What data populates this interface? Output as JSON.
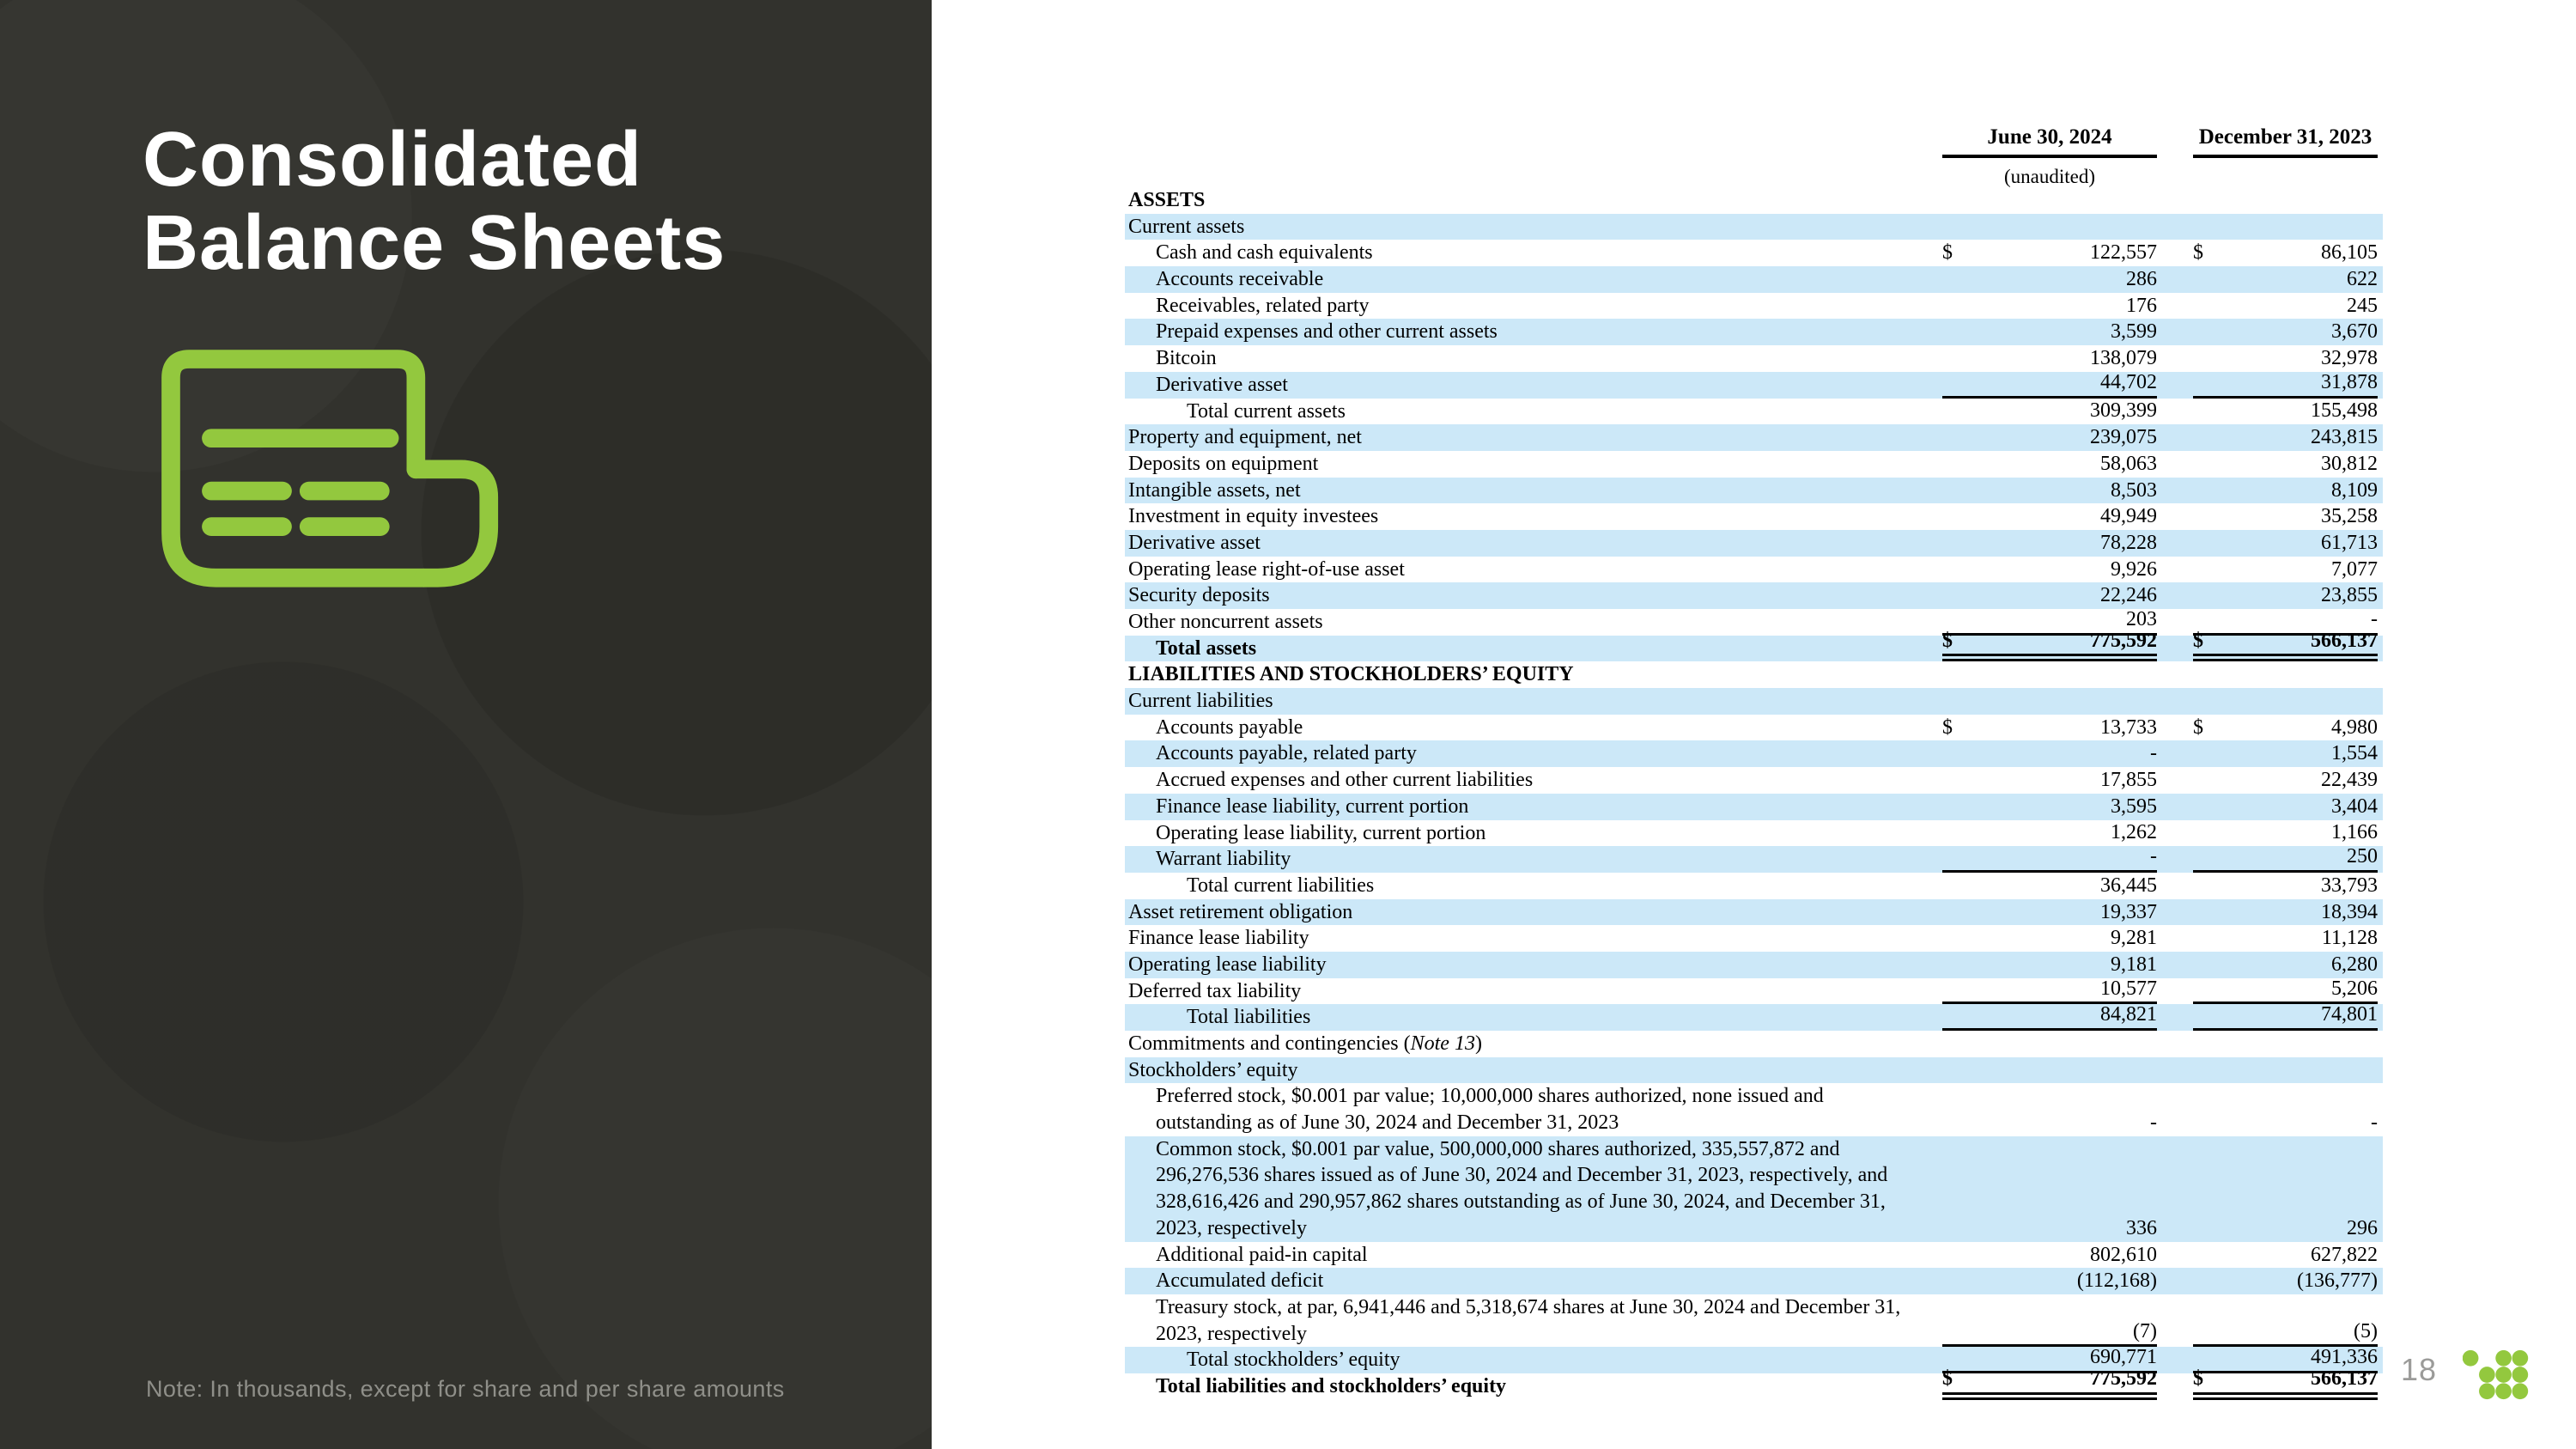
{
  "slide": {
    "title_lines": [
      "Consolidated",
      "Balance Sheets"
    ],
    "note": "Note: In thousands, except for share and per share amounts",
    "page_number": "18"
  },
  "colors": {
    "accent_green": "#93c83e",
    "panel_dark": "#32322d",
    "row_blue": "#cce8f8",
    "note_gray": "#8f8f89",
    "page_number_gray": "#9b9b99"
  },
  "icons": {
    "left_icon": "newspaper-icon",
    "footer_logo": "dots-grid-logo"
  },
  "table": {
    "col_headers": [
      {
        "label": "June 30, 2024",
        "sub": "(unaudited)"
      },
      {
        "label": "December 31, 2023",
        "sub": ""
      }
    ],
    "rows": [
      {
        "label": "ASSETS",
        "indent": 0,
        "bold": true,
        "shaded": false
      },
      {
        "label": "Current assets",
        "indent": 0,
        "shaded": true
      },
      {
        "label": "Cash and cash equivalents",
        "indent": 1,
        "shaded": false,
        "d1": "$",
        "v1": "122,557",
        "d2": "$",
        "v2": "86,105"
      },
      {
        "label": "Accounts receivable",
        "indent": 1,
        "shaded": true,
        "v1": "286",
        "v2": "622"
      },
      {
        "label": "Receivables, related party",
        "indent": 1,
        "shaded": false,
        "v1": "176",
        "v2": "245"
      },
      {
        "label": "Prepaid expenses and other current assets",
        "indent": 1,
        "shaded": true,
        "v1": "3,599",
        "v2": "3,670"
      },
      {
        "label": "Bitcoin",
        "indent": 1,
        "shaded": false,
        "v1": "138,079",
        "v2": "32,978"
      },
      {
        "label": "Derivative asset",
        "indent": 1,
        "shaded": true,
        "v1": "44,702",
        "v2": "31,878",
        "u": "s"
      },
      {
        "label": "Total current assets",
        "indent": 2,
        "shaded": false,
        "v1": "309,399",
        "v2": "155,498"
      },
      {
        "label": "Property and equipment, net",
        "indent": 0,
        "shaded": true,
        "v1": "239,075",
        "v2": "243,815"
      },
      {
        "label": "Deposits on equipment",
        "indent": 0,
        "shaded": false,
        "v1": "58,063",
        "v2": "30,812"
      },
      {
        "label": "Intangible assets, net",
        "indent": 0,
        "shaded": true,
        "v1": "8,503",
        "v2": "8,109"
      },
      {
        "label": "Investment in equity investees",
        "indent": 0,
        "shaded": false,
        "v1": "49,949",
        "v2": "35,258"
      },
      {
        "label": "Derivative asset",
        "indent": 0,
        "shaded": true,
        "v1": "78,228",
        "v2": "61,713"
      },
      {
        "label": "Operating lease right-of-use asset",
        "indent": 0,
        "shaded": false,
        "v1": "9,926",
        "v2": "7,077"
      },
      {
        "label": "Security deposits",
        "indent": 0,
        "shaded": true,
        "v1": "22,246",
        "v2": "23,855"
      },
      {
        "label": "Other noncurrent assets",
        "indent": 0,
        "shaded": false,
        "v1": "203",
        "v2": "-",
        "u": "s"
      },
      {
        "label": "Total assets",
        "indent": 1,
        "bold": true,
        "shaded": true,
        "d1": "$",
        "v1": "775,592",
        "d2": "$",
        "v2": "566,137",
        "u": "d"
      },
      {
        "label": "LIABILITIES AND STOCKHOLDERS’ EQUITY",
        "indent": 0,
        "bold": true,
        "shaded": false
      },
      {
        "label": "Current liabilities",
        "indent": 0,
        "shaded": true
      },
      {
        "label": "Accounts payable",
        "indent": 1,
        "shaded": false,
        "d1": "$",
        "v1": "13,733",
        "d2": "$",
        "v2": "4,980"
      },
      {
        "label": "Accounts payable, related party",
        "indent": 1,
        "shaded": true,
        "v1": "-",
        "v2": "1,554"
      },
      {
        "label": "Accrued expenses and other current liabilities",
        "indent": 1,
        "shaded": false,
        "v1": "17,855",
        "v2": "22,439"
      },
      {
        "label": "Finance lease liability, current portion",
        "indent": 1,
        "shaded": true,
        "v1": "3,595",
        "v2": "3,404"
      },
      {
        "label": "Operating lease liability, current portion",
        "indent": 1,
        "shaded": false,
        "v1": "1,262",
        "v2": "1,166"
      },
      {
        "label": "Warrant liability",
        "indent": 1,
        "shaded": true,
        "v1": "-",
        "v2": "250",
        "u": "s"
      },
      {
        "label": "Total current liabilities",
        "indent": 2,
        "shaded": false,
        "v1": "36,445",
        "v2": "33,793"
      },
      {
        "label": "Asset retirement obligation",
        "indent": 0,
        "shaded": true,
        "v1": "19,337",
        "v2": "18,394"
      },
      {
        "label": "Finance lease liability",
        "indent": 0,
        "shaded": false,
        "v1": "9,281",
        "v2": "11,128"
      },
      {
        "label": "Operating lease liability",
        "indent": 0,
        "shaded": true,
        "v1": "9,181",
        "v2": "6,280"
      },
      {
        "label": "Deferred tax liability",
        "indent": 0,
        "shaded": false,
        "v1": "10,577",
        "v2": "5,206",
        "u": "s"
      },
      {
        "label": "Total liabilities",
        "indent": 2,
        "shaded": true,
        "v1": "84,821",
        "v2": "74,801",
        "u": "s"
      },
      {
        "label": "Commitments and contingencies (",
        "it": "Note 13",
        "post": ")",
        "indent": 0,
        "shaded": false
      },
      {
        "label": "Stockholders’ equity",
        "indent": 0,
        "shaded": true
      },
      {
        "label": "Preferred stock, $0.001 par value; 10,000,000 shares authorized, none issued and\noutstanding as of June 30, 2024 and December 31, 2023",
        "indent": 1,
        "shaded": false,
        "v1": "-",
        "v2": "-",
        "lines": 2
      },
      {
        "label": "Common stock, $0.001 par value, 500,000,000 shares authorized, 335,557,872 and\n296,276,536 shares issued as of June 30, 2024 and December 31, 2023, respectively, and\n328,616,426 and 290,957,862 shares outstanding as of June 30, 2024, and December 31,\n2023, respectively",
        "indent": 1,
        "shaded": true,
        "v1": "336",
        "v2": "296",
        "lines": 4
      },
      {
        "label": "Additional paid-in capital",
        "indent": 1,
        "shaded": false,
        "v1": "802,610",
        "v2": "627,822"
      },
      {
        "label": "Accumulated deficit",
        "indent": 1,
        "shaded": true,
        "v1": "(112,168)",
        "v2": "(136,777)"
      },
      {
        "label": "Treasury stock, at par, 6,941,446 and 5,318,674 shares at June 30, 2024 and December 31,\n2023, respectively",
        "indent": 1,
        "shaded": false,
        "v1": "(7)",
        "v2": "(5)",
        "u": "s",
        "lines": 2
      },
      {
        "label": "Total stockholders’ equity",
        "indent": 2,
        "shaded": true,
        "v1": "690,771",
        "v2": "491,336",
        "u": "s"
      },
      {
        "label": "Total liabilities and stockholders’ equity",
        "indent": 1,
        "bold": true,
        "shaded": false,
        "d1": "$",
        "v1": "775,592",
        "d2": "$",
        "v2": "566,137",
        "u": "d"
      }
    ]
  }
}
